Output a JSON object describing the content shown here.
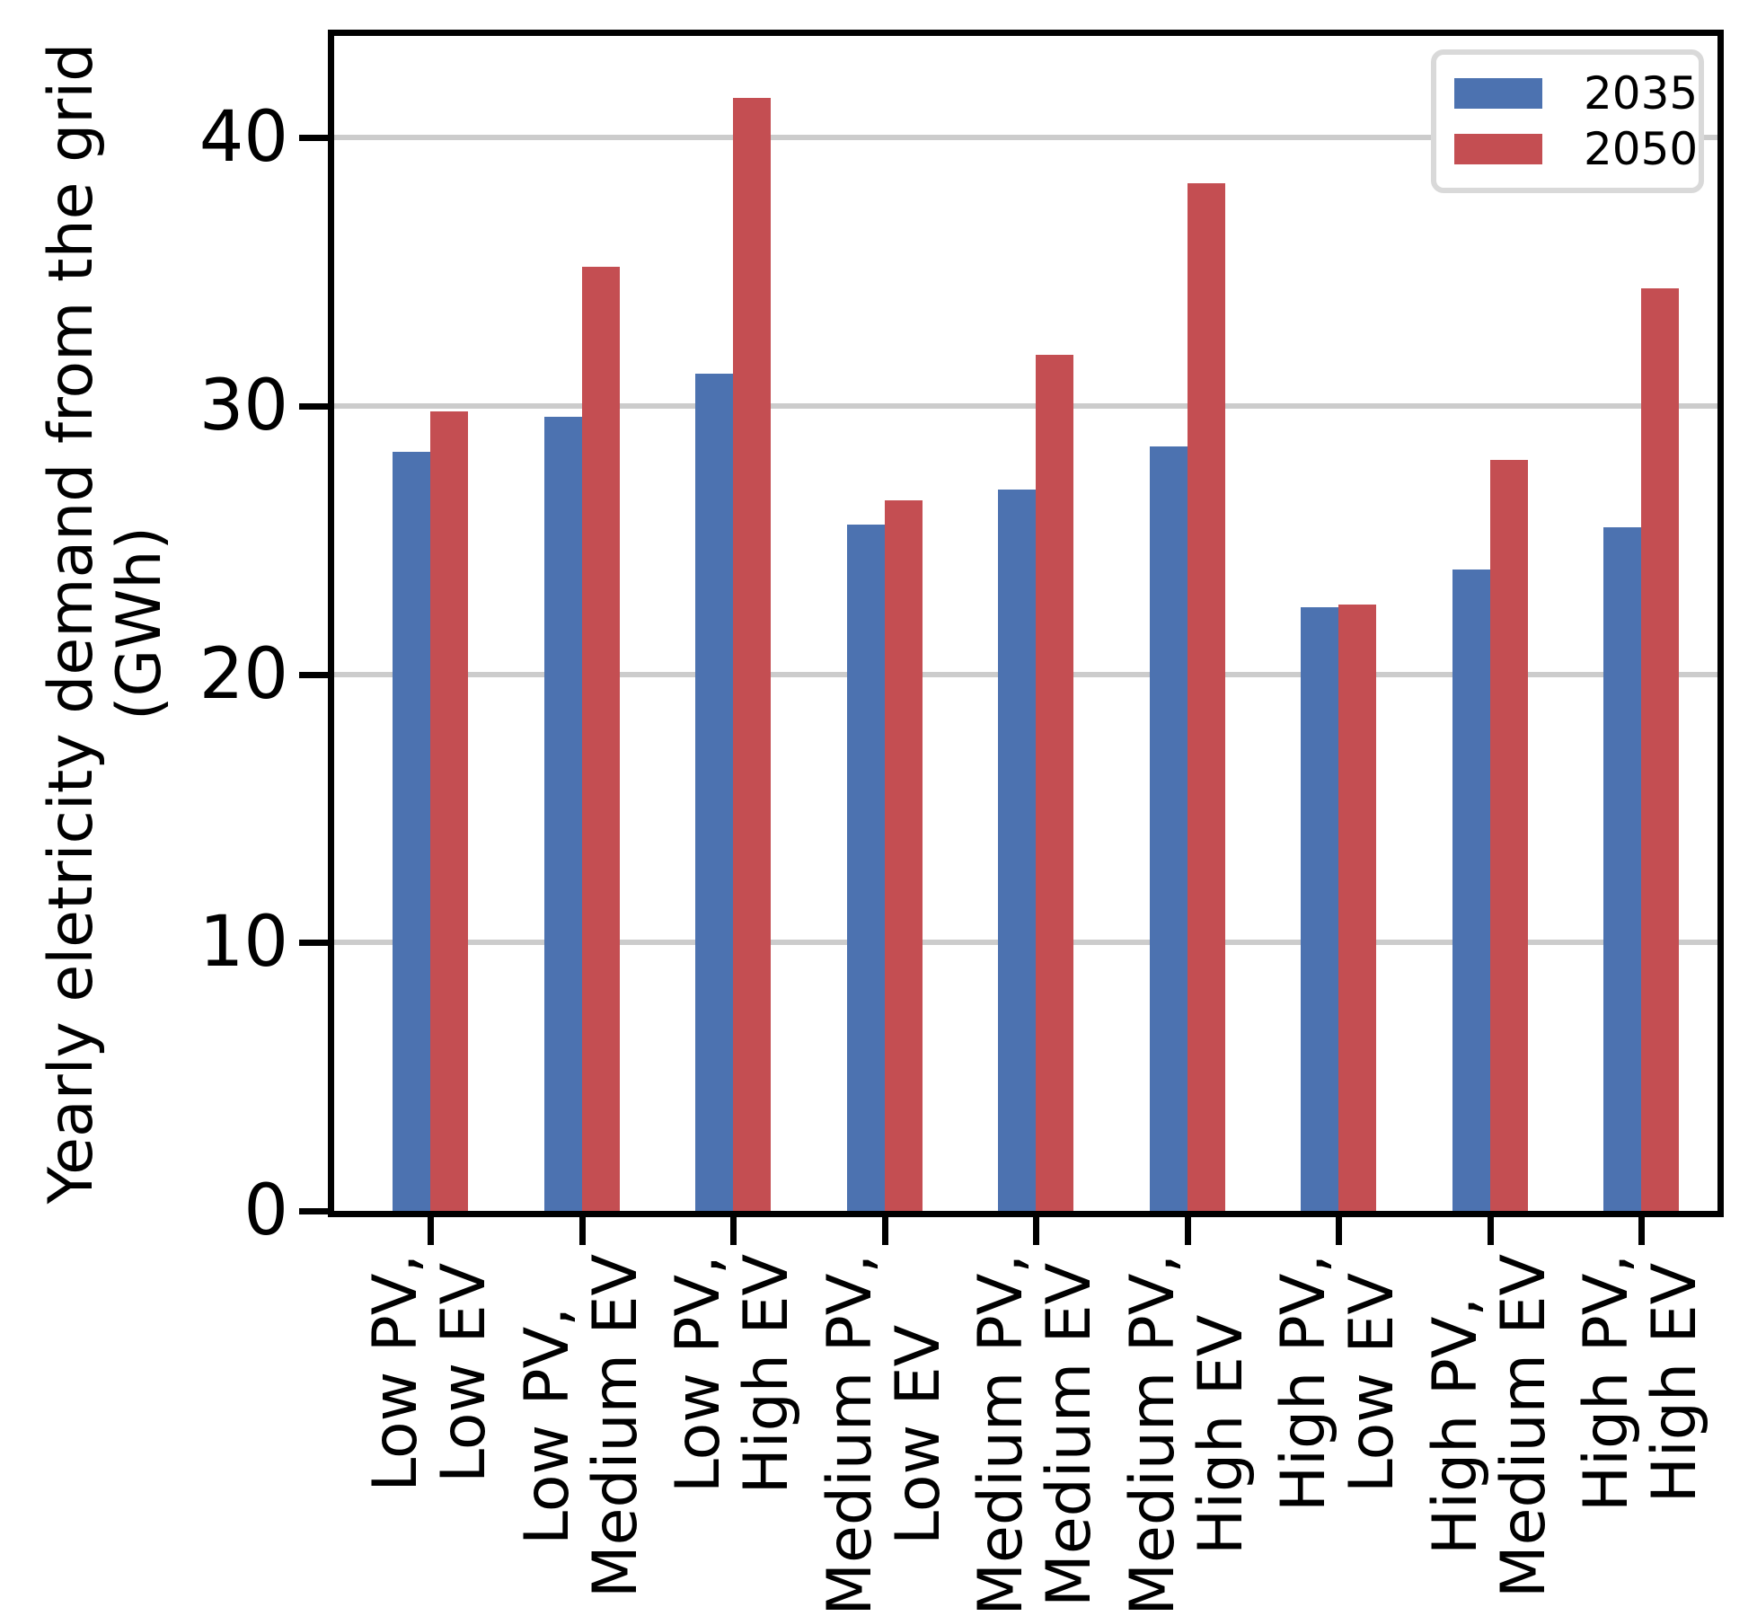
{
  "chart_data": {
    "type": "bar",
    "title": "",
    "xlabel": "",
    "ylabel": "Yearly eletricity demand from the grid (GWh)",
    "ylabel_lines": [
      "Yearly eletricity demand from the grid",
      "(GWh)"
    ],
    "categories": [
      "Low PV,\nLow EV",
      "Low PV,\nMedium EV",
      "Low PV,\nHigh EV",
      "Medium PV,\nLow EV",
      "Medium PV,\nMedium EV",
      "Medium PV,\nHigh EV",
      "High PV,\nLow EV",
      "High PV,\nMedium EV",
      "High PV,\nHigh EV"
    ],
    "series": [
      {
        "name": "2035",
        "color": "#4C72B0",
        "values": [
          28.3,
          29.6,
          31.2,
          25.6,
          26.9,
          28.5,
          22.5,
          23.9,
          25.5
        ]
      },
      {
        "name": "2050",
        "color": "#C44E52",
        "values": [
          29.8,
          35.2,
          41.5,
          26.5,
          31.9,
          38.3,
          22.6,
          28.0,
          34.4
        ]
      }
    ],
    "yticks": [
      0,
      10,
      20,
      30,
      40
    ],
    "ytick_labels": [
      "0",
      "10",
      "20",
      "30",
      "40"
    ],
    "ylim": [
      0,
      43.8
    ],
    "grid": "horizontal",
    "gridline_color": "#cccccc",
    "axis_color": "#000000",
    "legend_position": "upper right",
    "legend": [
      "2035",
      "2050"
    ]
  }
}
